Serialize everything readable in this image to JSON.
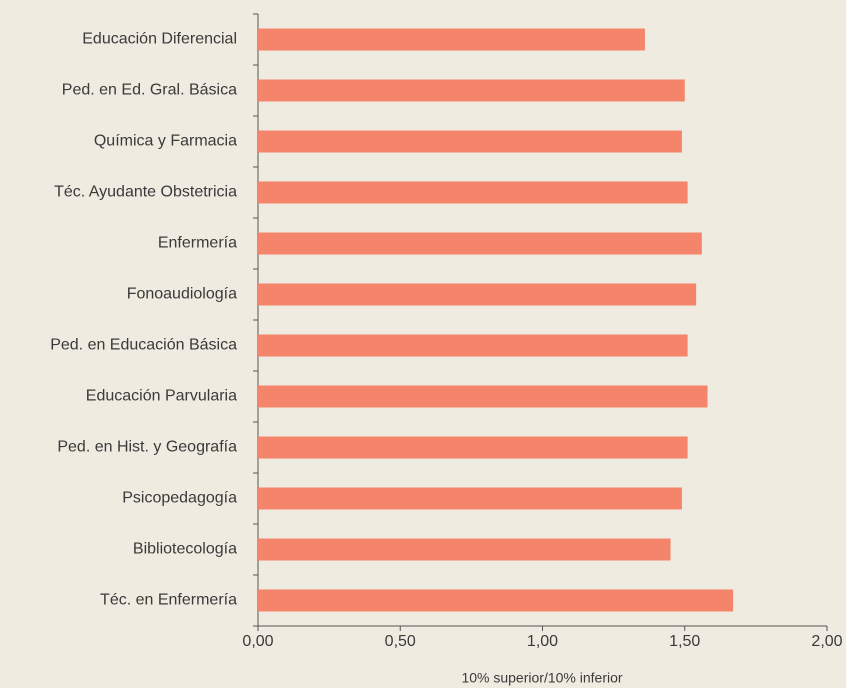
{
  "chart_data": {
    "type": "barh",
    "categories": [
      "Educación Diferencial",
      "Ped. en Ed. Gral. Básica",
      "Química y Farmacia",
      "Téc. Ayudante Obstetricia",
      "Enfermería",
      "Fonoaudiología",
      "Ped. en Educación Básica",
      "Educación Parvularia",
      "Ped. en Hist. y Geografía",
      "Psicopedagogía",
      "Bibliotecología",
      "Téc. en Enfermería"
    ],
    "values": [
      1.36,
      1.5,
      1.49,
      1.51,
      1.56,
      1.54,
      1.51,
      1.58,
      1.51,
      1.49,
      1.45,
      1.67
    ],
    "color": "#f4846a",
    "xlabel": "10% superior/10% inferior",
    "xlim": [
      0,
      2
    ],
    "xticks": [
      {
        "value": 0,
        "label": "0,00"
      },
      {
        "value": 0.5,
        "label": "0,50"
      },
      {
        "value": 1,
        "label": "1,00"
      },
      {
        "value": 1.5,
        "label": "1,50"
      },
      {
        "value": 2,
        "label": "2,00"
      }
    ]
  }
}
